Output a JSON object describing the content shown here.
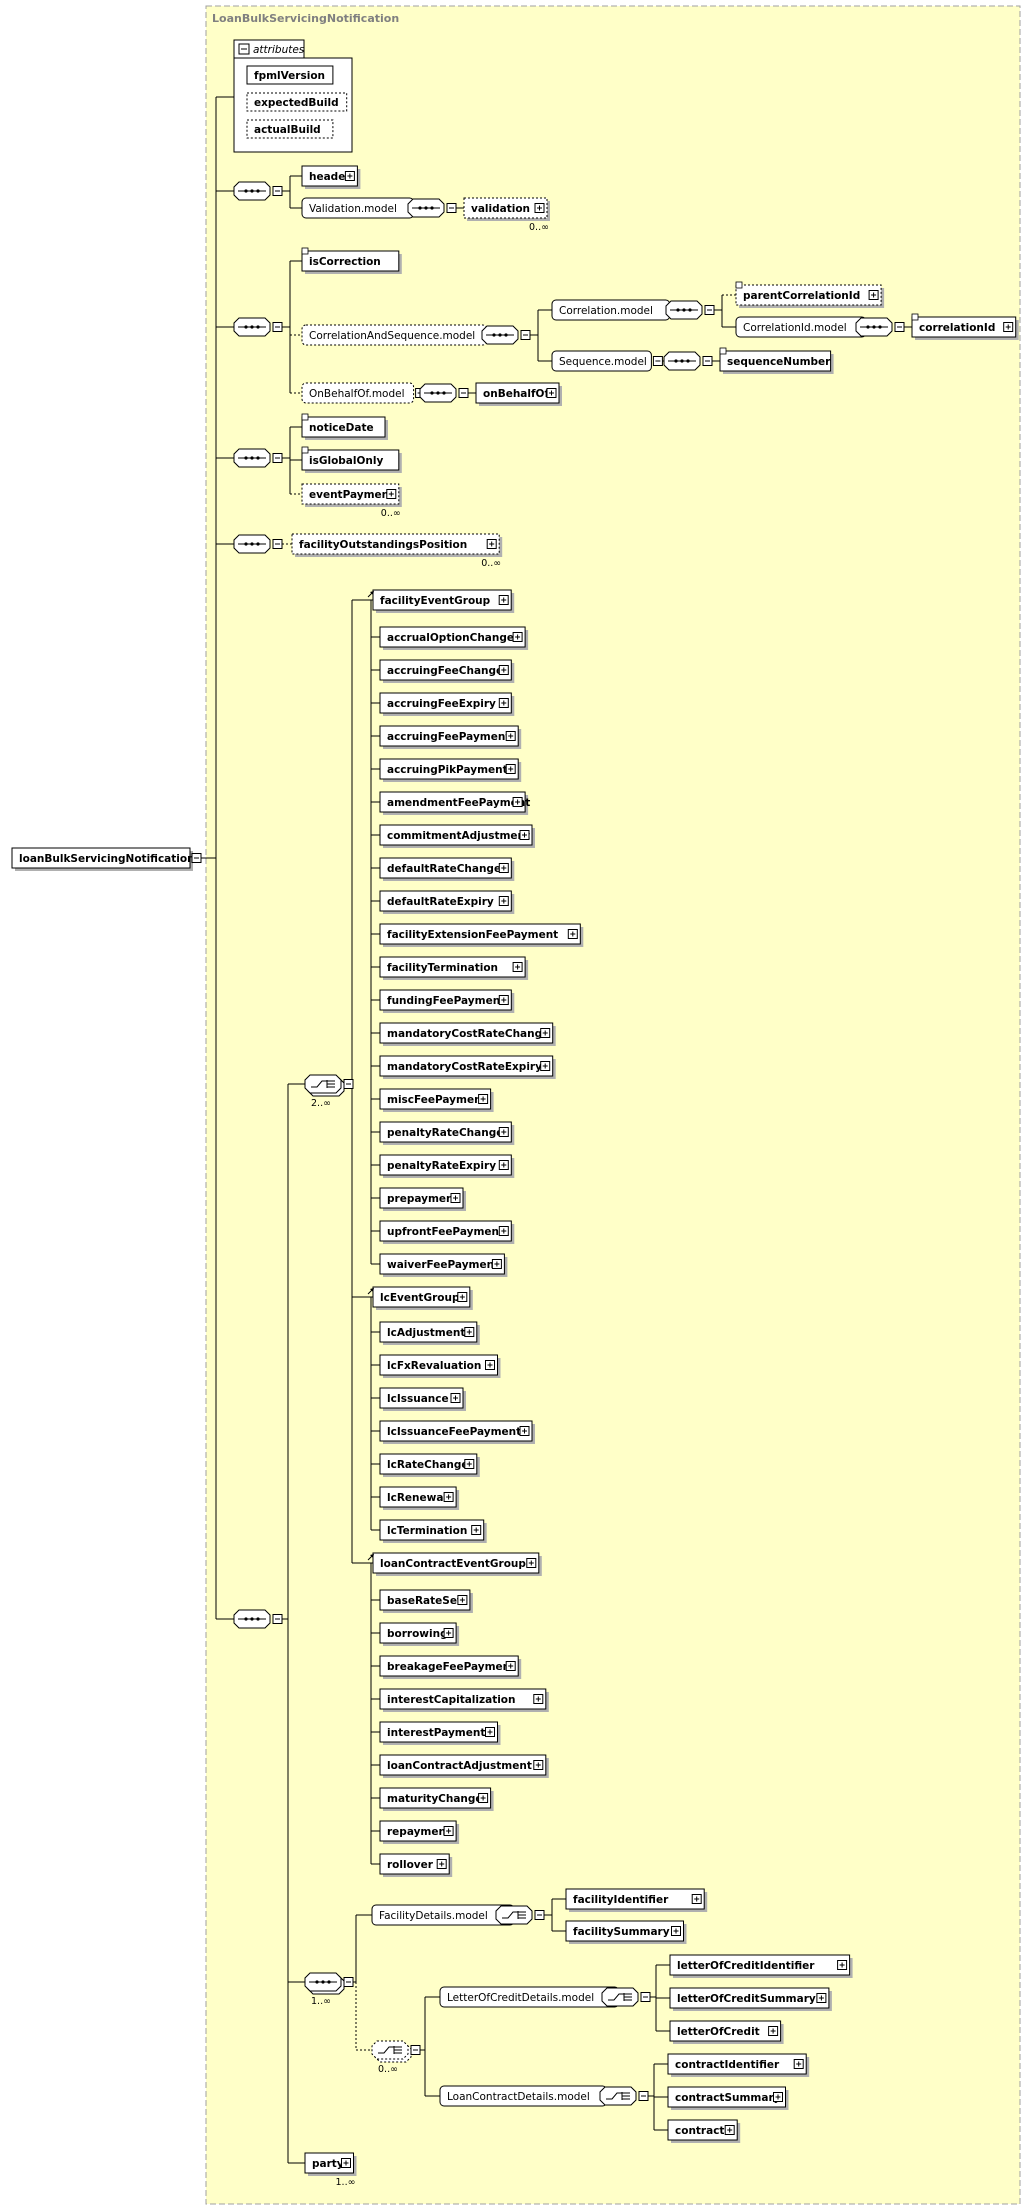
{
  "panel_title": "LoanBulkServicingNotification",
  "attributes_label": "attributes",
  "attributes": [
    {
      "name": "fpmlVersion",
      "optional": false
    },
    {
      "name": "expectedBuild",
      "optional": true
    },
    {
      "name": "actualBuild",
      "optional": true
    }
  ],
  "root": "loanBulkServicingNotification",
  "nodes": [
    {
      "id": "header",
      "label": "header",
      "bold": true,
      "optional": false
    },
    {
      "id": "validation_model",
      "label": "Validation.model",
      "bold": false,
      "optional": false
    },
    {
      "id": "validation",
      "label": "validation",
      "bold": true,
      "optional": true,
      "card": "0..∞"
    },
    {
      "id": "isCorrection",
      "label": "isCorrection",
      "bold": true,
      "optional": false
    },
    {
      "id": "corr_seq_model",
      "label": "CorrelationAndSequence.model",
      "bold": false,
      "optional": true
    },
    {
      "id": "correlation_model",
      "label": "Correlation.model",
      "bold": false,
      "optional": false
    },
    {
      "id": "parentCorrelationId",
      "label": "parentCorrelationId",
      "bold": true,
      "optional": true
    },
    {
      "id": "correlationId_model",
      "label": "CorrelationId.model",
      "bold": false,
      "optional": false
    },
    {
      "id": "correlationId",
      "label": "correlationId",
      "bold": true,
      "optional": false
    },
    {
      "id": "sequence_model",
      "label": "Sequence.model",
      "bold": false,
      "optional": false
    },
    {
      "id": "sequenceNumber",
      "label": "sequenceNumber",
      "bold": true,
      "optional": false
    },
    {
      "id": "onBehalfOf_model",
      "label": "OnBehalfOf.model",
      "bold": false,
      "optional": true
    },
    {
      "id": "onBehalfOf",
      "label": "onBehalfOf",
      "bold": true,
      "optional": false
    },
    {
      "id": "noticeDate",
      "label": "noticeDate",
      "bold": true,
      "optional": false
    },
    {
      "id": "isGlobalOnly",
      "label": "isGlobalOnly",
      "bold": true,
      "optional": false
    },
    {
      "id": "eventPayment",
      "label": "eventPayment",
      "bold": true,
      "optional": true,
      "card": "0..∞"
    },
    {
      "id": "facilityOutstandingsPosition",
      "label": "facilityOutstandingsPosition",
      "bold": true,
      "optional": true,
      "card": "0..∞"
    },
    {
      "id": "facilityEventGroup",
      "label": "facilityEventGroup",
      "bold": true,
      "optional": false
    },
    {
      "id": "lcEventGroup",
      "label": "lcEventGroup",
      "bold": true,
      "optional": false
    },
    {
      "id": "loanContractEventGroup",
      "label": "loanContractEventGroup",
      "bold": true,
      "optional": false
    },
    {
      "id": "facilityDetails_model",
      "label": "FacilityDetails.model",
      "bold": false,
      "optional": false
    },
    {
      "id": "facilityIdentifier",
      "label": "facilityIdentifier",
      "bold": true,
      "optional": false
    },
    {
      "id": "facilitySummary",
      "label": "facilitySummary",
      "bold": true,
      "optional": false
    },
    {
      "id": "locDetails_model",
      "label": "LetterOfCreditDetails.model",
      "bold": false,
      "optional": false
    },
    {
      "id": "letterOfCreditIdentifier",
      "label": "letterOfCreditIdentifier",
      "bold": true,
      "optional": false
    },
    {
      "id": "letterOfCreditSummary",
      "label": "letterOfCreditSummary",
      "bold": true,
      "optional": false
    },
    {
      "id": "letterOfCredit",
      "label": "letterOfCredit",
      "bold": true,
      "optional": false
    },
    {
      "id": "loanContractDetails_model",
      "label": "LoanContractDetails.model",
      "bold": false,
      "optional": false
    },
    {
      "id": "contractIdentifier",
      "label": "contractIdentifier",
      "bold": true,
      "optional": false
    },
    {
      "id": "contractSummary",
      "label": "contractSummary",
      "bold": true,
      "optional": false
    },
    {
      "id": "contract",
      "label": "contract",
      "bold": true,
      "optional": false
    },
    {
      "id": "party",
      "label": "party",
      "bold": true,
      "optional": false,
      "card": "1..∞"
    }
  ],
  "facility_events": [
    "accrualOptionChange",
    "accruingFeeChange",
    "accruingFeeExpiry",
    "accruingFeePayment",
    "accruingPikPayment",
    "amendmentFeePayment",
    "commitmentAdjustment",
    "defaultRateChange",
    "defaultRateExpiry",
    "facilityExtensionFeePayment",
    "facilityTermination",
    "fundingFeePayment",
    "mandatoryCostRateChange",
    "mandatoryCostRateExpiry",
    "miscFeePayment",
    "penaltyRateChange",
    "penaltyRateExpiry",
    "prepayment",
    "upfrontFeePayment",
    "waiverFeePayment"
  ],
  "lc_events": [
    "lcAdjustment",
    "lcFxRevaluation",
    "lcIssuance",
    "lcIssuanceFeePayment",
    "lcRateChange",
    "lcRenewal",
    "lcTermination"
  ],
  "loan_contract_events": [
    "baseRateSet",
    "borrowing",
    "breakageFeePayment",
    "interestCapitalization",
    "interestPayment",
    "loanContractAdjustment",
    "maturityChange",
    "repayment",
    "rollover"
  ],
  "choice_card": "2..∞",
  "seq_card": "1..∞",
  "inner_choice_card": "0..∞",
  "colors": {
    "panel_fill": "#ffffc8",
    "panel_border": "#a0a0a0",
    "compositor_fill": "#ffffff"
  }
}
